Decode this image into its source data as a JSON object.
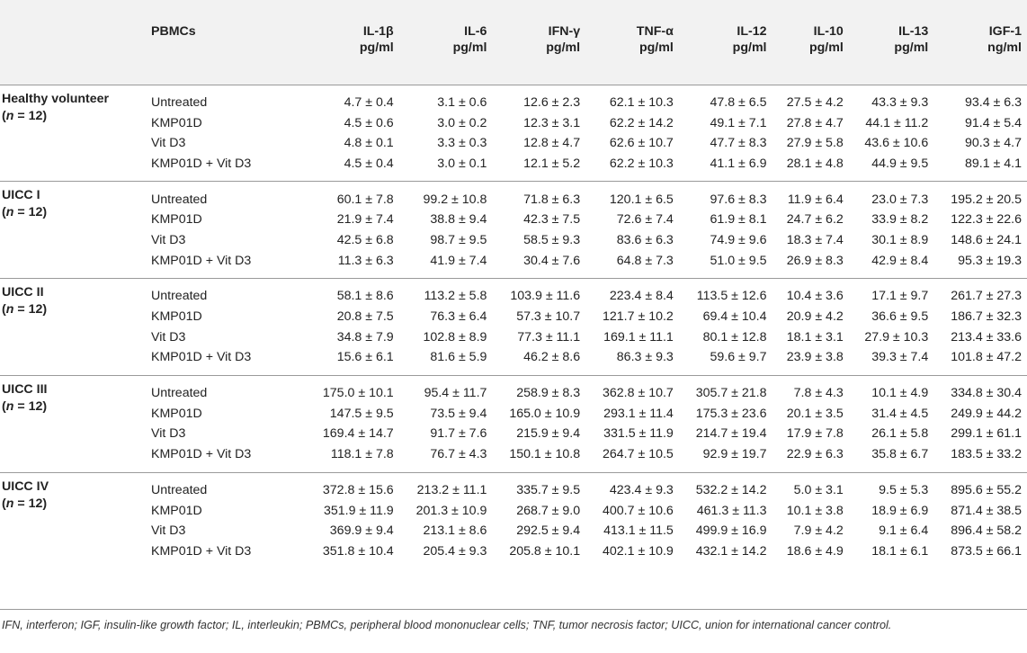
{
  "headers": [
    {
      "line1": "",
      "line2": ""
    },
    {
      "line1": "PBMCs",
      "line2": ""
    },
    {
      "line1": "IL-1β",
      "line2": "pg/ml"
    },
    {
      "line1": "IL-6",
      "line2": "pg/ml"
    },
    {
      "line1": "IFN-γ",
      "line2": "pg/ml"
    },
    {
      "line1": "TNF-α",
      "line2": "pg/ml"
    },
    {
      "line1": "IL-12",
      "line2": "pg/ml"
    },
    {
      "line1": "IL-10",
      "line2": "pg/ml"
    },
    {
      "line1": "IL-13",
      "line2": "pg/ml"
    },
    {
      "line1": "IGF-1",
      "line2": "ng/ml"
    }
  ],
  "groups": [
    {
      "name": "Healthy volunteer",
      "n_label": "(n = 12)",
      "rows": [
        {
          "pbmc": "Untreated",
          "values": [
            "4.7 ± 0.4",
            "3.1 ± 0.6",
            "12.6 ± 2.3",
            "62.1 ± 10.3",
            "47.8 ± 6.5",
            "27.5 ± 4.2",
            "43.3 ± 9.3",
            "93.4 ± 6.3"
          ]
        },
        {
          "pbmc": "KMP01D",
          "values": [
            "4.5 ± 0.6",
            "3.0 ± 0.2",
            "12.3 ± 3.1",
            "62.2 ± 14.2",
            "49.1 ± 7.1",
            "27.8 ± 4.7",
            "44.1 ± 11.2",
            "91.4 ± 5.4"
          ]
        },
        {
          "pbmc": "Vit D3",
          "values": [
            "4.8 ± 0.1",
            "3.3 ± 0.3",
            "12.8 ± 4.7",
            "62.6 ± 10.7",
            "47.7 ± 8.3",
            "27.9 ± 5.8",
            "43.6 ± 10.6",
            "90.3 ± 4.7"
          ]
        },
        {
          "pbmc": "KMP01D + Vit D3",
          "values": [
            "4.5 ± 0.4",
            "3.0 ± 0.1",
            "12.1 ± 5.2",
            "62.2 ± 10.3",
            "41.1 ± 6.9",
            "28.1 ± 4.8",
            "44.9 ± 9.5",
            "89.1 ± 4.1"
          ]
        }
      ]
    },
    {
      "name": "UICC I",
      "n_label": "(n = 12)",
      "rows": [
        {
          "pbmc": "Untreated",
          "values": [
            "60.1 ± 7.8",
            "99.2 ± 10.8",
            "71.8 ± 6.3",
            "120.1 ± 6.5",
            "97.6 ± 8.3",
            "11.9 ± 6.4",
            "23.0 ± 7.3",
            "195.2 ± 20.5"
          ]
        },
        {
          "pbmc": "KMP01D",
          "values": [
            "21.9 ± 7.4",
            "38.8 ± 9.4",
            "42.3 ± 7.5",
            "72.6 ± 7.4",
            "61.9 ± 8.1",
            "24.7 ± 6.2",
            "33.9 ± 8.2",
            "122.3 ± 22.6"
          ]
        },
        {
          "pbmc": "Vit D3",
          "values": [
            "42.5 ± 6.8",
            "98.7 ± 9.5",
            "58.5 ± 9.3",
            "83.6 ± 6.3",
            "74.9 ± 9.6",
            "18.3 ± 7.4",
            "30.1 ± 8.9",
            "148.6 ± 24.1"
          ]
        },
        {
          "pbmc": "KMP01D + Vit D3",
          "values": [
            "11.3 ± 6.3",
            "41.9 ± 7.4",
            "30.4 ± 7.6",
            "64.8 ± 7.3",
            "51.0 ± 9.5",
            "26.9 ± 8.3",
            "42.9 ± 8.4",
            "95.3 ± 19.3"
          ]
        }
      ]
    },
    {
      "name": "UICC II",
      "n_label": "(n = 12)",
      "rows": [
        {
          "pbmc": "Untreated",
          "values": [
            "58.1 ± 8.6",
            "113.2 ± 5.8",
            "103.9 ± 11.6",
            "223.4 ± 8.4",
            "113.5 ± 12.6",
            "10.4 ± 3.6",
            "17.1 ± 9.7",
            "261.7 ± 27.3"
          ]
        },
        {
          "pbmc": "KMP01D",
          "values": [
            "20.8 ± 7.5",
            "76.3 ± 6.4",
            "57.3 ± 10.7",
            "121.7 ± 10.2",
            "69.4 ± 10.4",
            "20.9 ± 4.2",
            "36.6 ± 9.5",
            "186.7 ± 32.3"
          ]
        },
        {
          "pbmc": "Vit D3",
          "values": [
            "34.8 ± 7.9",
            "102.8 ± 8.9",
            "77.3 ± 11.1",
            "169.1 ± 11.1",
            "80.1 ± 12.8",
            "18.1 ± 3.1",
            "27.9 ± 10.3",
            "213.4 ± 33.6"
          ]
        },
        {
          "pbmc": "KMP01D + Vit D3",
          "values": [
            "15.6 ± 6.1",
            "81.6 ± 5.9",
            "46.2 ± 8.6",
            "86.3 ± 9.3",
            "59.6 ± 9.7",
            "23.9 ± 3.8",
            "39.3 ± 7.4",
            "101.8 ± 47.2"
          ]
        }
      ]
    },
    {
      "name": "UICC III",
      "n_label": "(n = 12)",
      "rows": [
        {
          "pbmc": "Untreated",
          "values": [
            "175.0 ± 10.1",
            "95.4 ± 11.7",
            "258.9 ± 8.3",
            "362.8 ± 10.7",
            "305.7 ± 21.8",
            "7.8 ± 4.3",
            "10.1 ± 4.9",
            "334.8 ± 30.4"
          ]
        },
        {
          "pbmc": "KMP01D",
          "values": [
            "147.5 ± 9.5",
            "73.5 ± 9.4",
            "165.0 ± 10.9",
            "293.1 ± 11.4",
            "175.3 ± 23.6",
            "20.1 ± 3.5",
            "31.4 ± 4.5",
            "249.9 ± 44.2"
          ]
        },
        {
          "pbmc": "Vit D3",
          "values": [
            "169.4 ± 14.7",
            "91.7 ± 7.6",
            "215.9 ± 9.4",
            "331.5 ± 11.9",
            "214.7 ± 19.4",
            "17.9 ± 7.8",
            "26.1 ± 5.8",
            "299.1 ± 61.1"
          ]
        },
        {
          "pbmc": "KMP01D + Vit D3",
          "values": [
            "118.1 ± 7.8",
            "76.7 ± 4.3",
            "150.1 ± 10.8",
            "264.7 ± 10.5",
            "92.9 ± 19.7",
            "22.9 ± 6.3",
            "35.8 ± 6.7",
            "183.5 ± 33.2"
          ]
        }
      ]
    },
    {
      "name": "UICC IV",
      "n_label": "(n = 12)",
      "rows": [
        {
          "pbmc": "Untreated",
          "values": [
            "372.8 ± 15.6",
            "213.2 ± 11.1",
            "335.7 ± 9.5",
            "423.4 ± 9.3",
            "532.2 ± 14.2",
            "5.0 ± 3.1",
            "9.5 ± 5.3",
            "895.6 ± 55.2"
          ]
        },
        {
          "pbmc": "KMP01D",
          "values": [
            "351.9 ± 11.9",
            "201.3 ± 10.9",
            "268.7 ± 9.0",
            "400.7 ± 10.6",
            "461.3 ± 11.3",
            "10.1 ± 3.8",
            "18.9 ± 6.9",
            "871.4 ± 38.5"
          ]
        },
        {
          "pbmc": "Vit D3",
          "values": [
            "369.9 ± 9.4",
            "213.1 ± 8.6",
            "292.5 ± 9.4",
            "413.1 ± 11.5",
            "499.9 ± 16.9",
            "7.9 ± 4.2",
            "9.1 ± 6.4",
            "896.4 ± 58.2"
          ]
        },
        {
          "pbmc": "KMP01D + Vit D3",
          "values": [
            "351.8 ± 10.4",
            "205.4 ± 9.3",
            "205.8 ± 10.1",
            "402.1 ± 10.9",
            "432.1 ± 14.2",
            "18.6 ± 4.9",
            "18.1 ± 6.1",
            "873.5 ± 66.1"
          ]
        }
      ]
    }
  ],
  "footnote": "IFN, interferon; IGF, insulin-like growth factor; IL, interleukin; PBMCs, peripheral blood mononuclear cells; TNF, tumor necrosis factor; UICC, union for international cancer control."
}
